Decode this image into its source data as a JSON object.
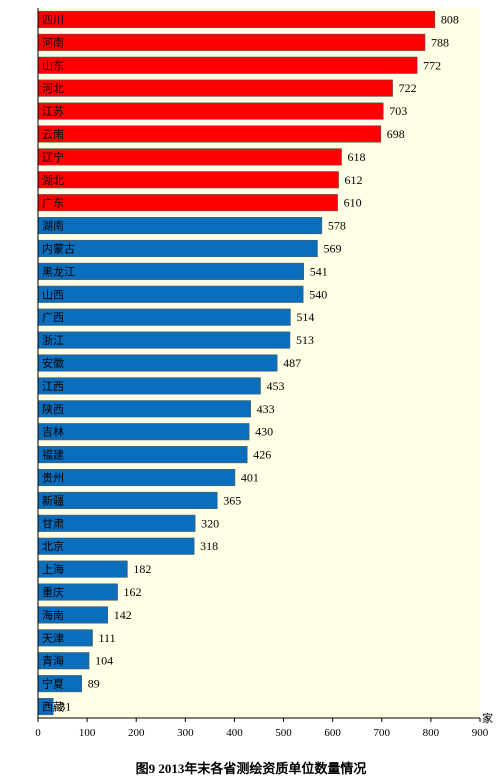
{
  "chart_data": {
    "type": "bar",
    "orientation": "horizontal",
    "title": "图9  2013年末各省测绘资质单位数量情况",
    "xlabel": "",
    "ylabel": "",
    "unit": "家",
    "xlim": [
      0,
      900
    ],
    "xticks": [
      0,
      100,
      200,
      300,
      400,
      500,
      600,
      700,
      800,
      900
    ],
    "categories": [
      "四川",
      "河南",
      "山东",
      "河北",
      "江苏",
      "云南",
      "辽宁",
      "湖北",
      "广东",
      "湖南",
      "内蒙古",
      "黑龙江",
      "山西",
      "广西",
      "浙江",
      "安徽",
      "江西",
      "陕西",
      "吉林",
      "福建",
      "贵州",
      "新疆",
      "甘肃",
      "北京",
      "上海",
      "重庆",
      "海南",
      "天津",
      "青海",
      "宁夏",
      "西藏"
    ],
    "values": [
      808,
      788,
      772,
      722,
      703,
      698,
      618,
      612,
      610,
      578,
      569,
      541,
      540,
      514,
      513,
      487,
      453,
      433,
      430,
      426,
      401,
      365,
      320,
      318,
      182,
      162,
      142,
      111,
      104,
      89,
      31
    ],
    "highlight_count": 9,
    "colors": {
      "highlight": "#ff0000",
      "normal": "#0a6ebd",
      "plot_bg": "#ffffe5"
    },
    "grid": false,
    "legend": "none"
  }
}
